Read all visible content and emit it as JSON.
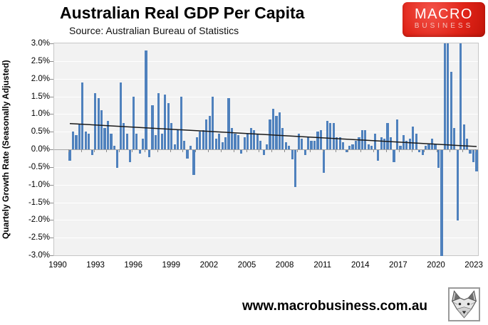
{
  "header": {
    "title": "Australian Real GDP Per Capita",
    "subtitle": "Source: Australian Bureau of Statistics"
  },
  "logo": {
    "line1": "MACRO",
    "line2": "BUSINESS",
    "bg_color": "#e02418",
    "text_color": "#ffffff"
  },
  "footer": {
    "url": "www.macrobusiness.com.au",
    "logo_icon": "fox-head-sketch"
  },
  "chart_data": {
    "type": "bar",
    "title": "Australian Real GDP Per Capita",
    "subtitle": "Source: Australian Bureau of Statistics",
    "ylabel": "Quartely Growth Rate (Seasonally Adjusted)",
    "xlabel": "",
    "unit": "%",
    "frequency": "quarterly",
    "start_period": "1991 Q1",
    "end_period": "2023 Q1",
    "ylim": [
      -3.0,
      3.0
    ],
    "ytick_step": 0.5,
    "y_tick_labels": [
      "3.0%",
      "2.5%",
      "2.0%",
      "1.5%",
      "1.0%",
      "0.5%",
      "0.0%",
      "-0.5%",
      "-1.0%",
      "-1.5%",
      "-2.0%",
      "-2.5%",
      "-3.0%"
    ],
    "x_tick_labels": [
      "1990",
      "1993",
      "1996",
      "1999",
      "2002",
      "2005",
      "2008",
      "2011",
      "2014",
      "2017",
      "2020",
      "2023"
    ],
    "grid": "horizontal, light on grey plot background",
    "legend": "none",
    "bar_color": "#4f81bd",
    "plot_bg_color": "#f2f2f2",
    "trend_line": {
      "type": "linear",
      "color": "#1a1a1a",
      "start_value": 0.73,
      "end_value": 0.08
    },
    "note": "bars at 2020-2021 are clipped at the -3.0% / +3.0% axis limits",
    "values": [
      -0.3,
      0.5,
      0.4,
      0.7,
      1.9,
      0.5,
      0.45,
      -0.15,
      1.6,
      1.45,
      1.1,
      0.6,
      0.8,
      0.45,
      0.1,
      -0.5,
      1.9,
      0.75,
      0.45,
      -0.35,
      1.5,
      0.45,
      -0.1,
      0.3,
      2.8,
      -0.2,
      1.25,
      0.4,
      1.6,
      0.45,
      1.55,
      1.3,
      0.75,
      0.15,
      0.55,
      1.5,
      0.25,
      -0.25,
      0.1,
      -0.7,
      0.35,
      0.5,
      0.55,
      0.85,
      0.95,
      1.5,
      0.3,
      0.45,
      0.2,
      0.35,
      1.45,
      0.6,
      0.45,
      0.4,
      -0.1,
      0.35,
      0.45,
      0.6,
      0.55,
      0.45,
      0.25,
      -0.15,
      0.15,
      0.85,
      1.15,
      0.95,
      1.05,
      0.6,
      0.2,
      0.1,
      -0.27,
      -1.05,
      0.45,
      0.3,
      -0.13,
      0.37,
      0.25,
      0.25,
      0.5,
      0.55,
      -0.65,
      0.8,
      0.75,
      0.75,
      0.35,
      0.35,
      0.2,
      -0.05,
      0.1,
      0.15,
      0.25,
      0.35,
      0.55,
      0.55,
      0.15,
      0.1,
      0.45,
      -0.3,
      0.35,
      0.3,
      0.75,
      0.35,
      -0.35,
      0.85,
      0.1,
      0.4,
      0.25,
      0.3,
      0.65,
      0.45,
      -0.05,
      -0.15,
      0.1,
      0.15,
      0.3,
      0.15,
      -0.5,
      -3.0,
      3.0,
      3.0,
      2.2,
      0.6,
      -2.0,
      3.0,
      0.7,
      0.3,
      -0.1,
      -0.35,
      -0.6
    ]
  }
}
